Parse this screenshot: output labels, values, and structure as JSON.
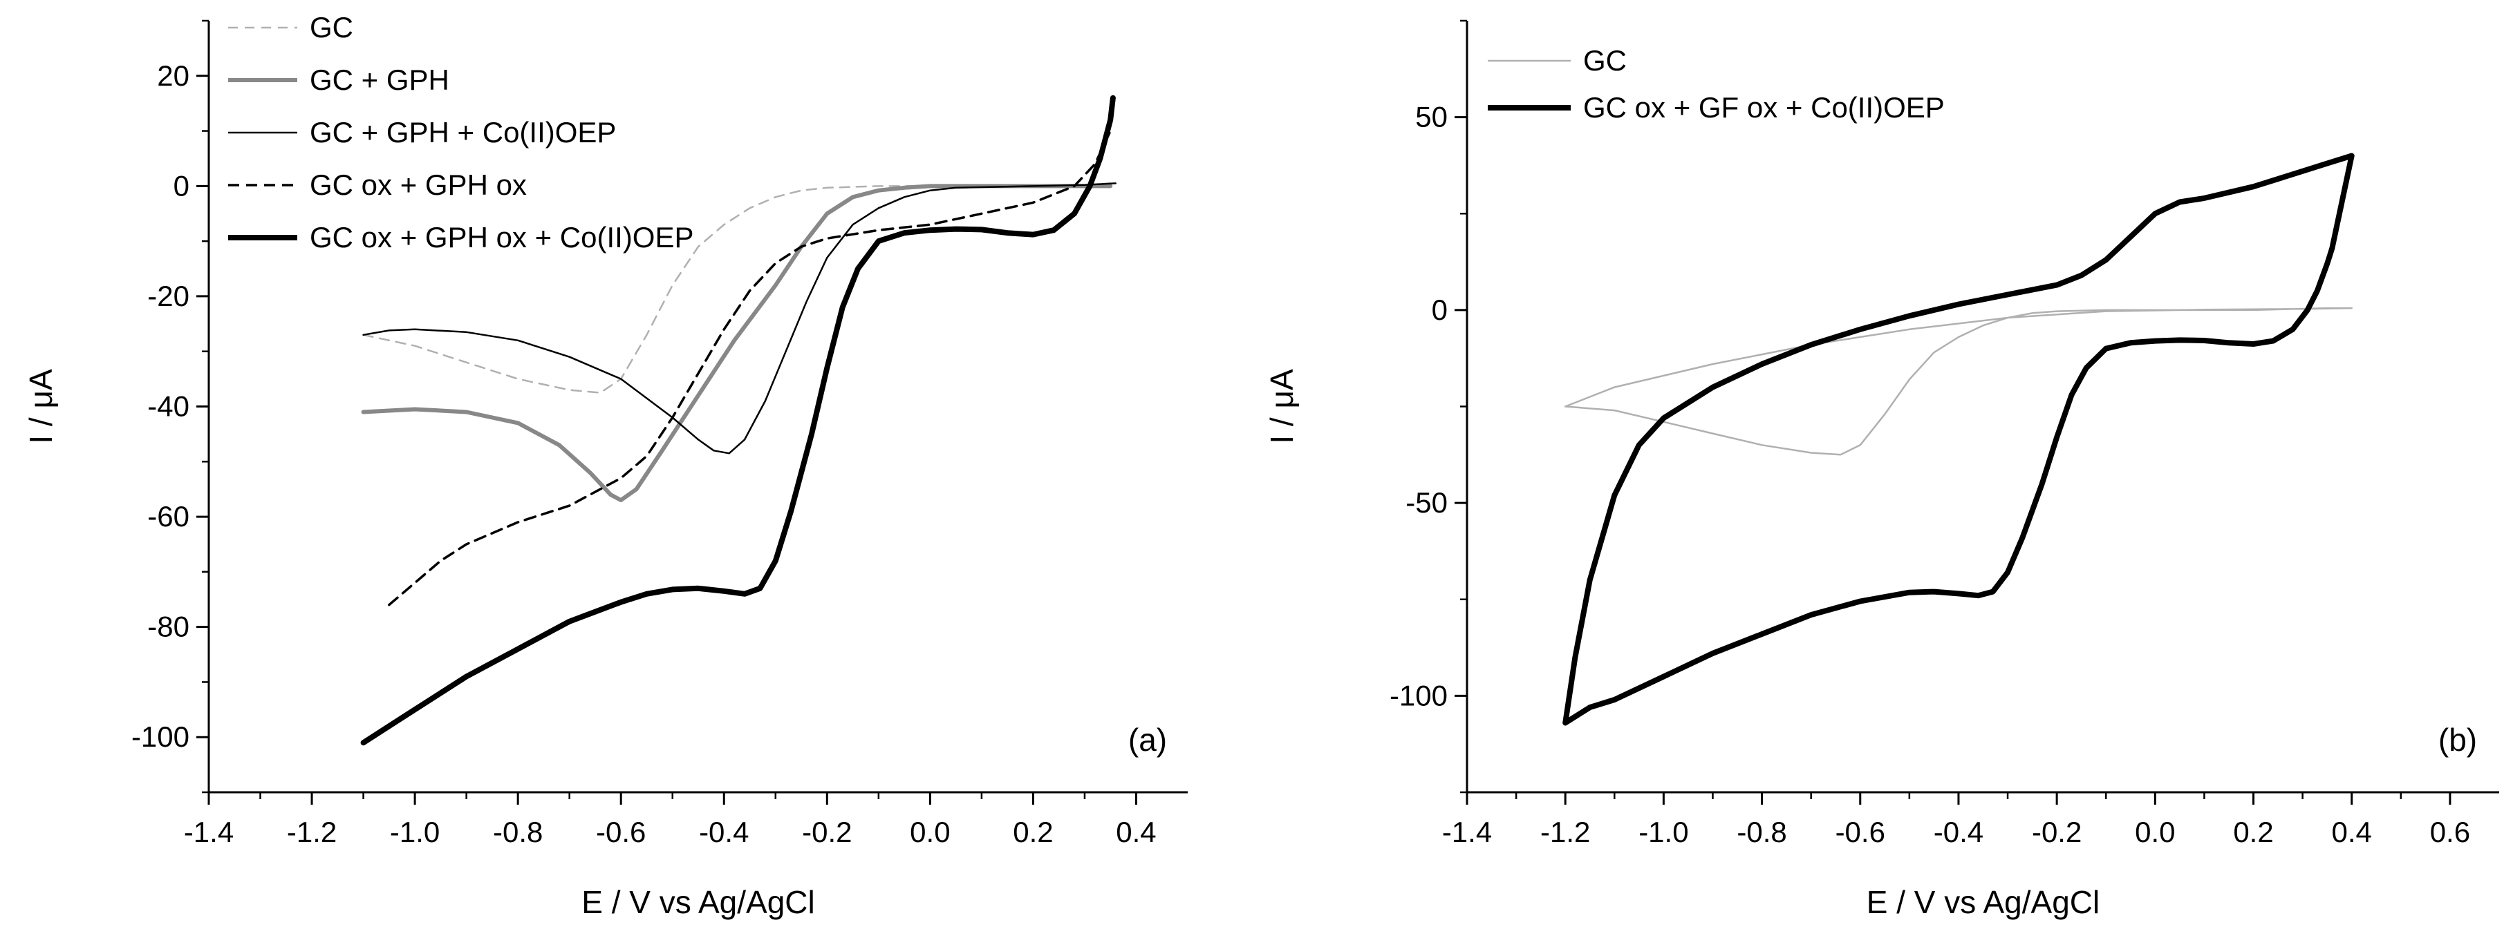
{
  "chart_data": [
    {
      "id": "a",
      "type": "line",
      "panel_label": "(a)",
      "xlabel": "E / V vs Ag/AgCl",
      "ylabel": "I / μA",
      "xlim": [
        -1.4,
        0.5
      ],
      "ylim": [
        -110,
        30
      ],
      "xticks": [
        -1.4,
        -1.2,
        -1.0,
        -0.8,
        -0.6,
        -0.4,
        -0.2,
        0.0,
        0.2,
        0.4
      ],
      "xtick_labels": [
        "-1.4",
        "-1.2",
        "-1.0",
        "-0.8",
        "-0.6",
        "-0.4",
        "-0.2",
        "0.0",
        "0.2",
        "0.4"
      ],
      "yticks": [
        -100,
        -80,
        -60,
        -40,
        -20,
        0,
        20
      ],
      "ytick_labels": [
        "-100",
        "-80",
        "-60",
        "-40",
        "-20",
        "0",
        "20"
      ],
      "legend_position": "top-left",
      "series": [
        {
          "name": "GC",
          "color": "#b0b0b0",
          "style": "dashed-thin",
          "points": [
            [
              -1.1,
              -27
            ],
            [
              -1.0,
              -29
            ],
            [
              -0.9,
              -32
            ],
            [
              -0.8,
              -35
            ],
            [
              -0.7,
              -37
            ],
            [
              -0.64,
              -37.5
            ],
            [
              -0.6,
              -35
            ],
            [
              -0.55,
              -27
            ],
            [
              -0.5,
              -18
            ],
            [
              -0.45,
              -11
            ],
            [
              -0.4,
              -7
            ],
            [
              -0.35,
              -4
            ],
            [
              -0.3,
              -2
            ],
            [
              -0.25,
              -0.8
            ],
            [
              -0.2,
              -0.3
            ],
            [
              -0.1,
              0
            ],
            [
              0.0,
              0
            ],
            [
              0.1,
              0
            ],
            [
              0.2,
              0
            ],
            [
              0.3,
              0.2
            ],
            [
              0.35,
              0.5
            ]
          ]
        },
        {
          "name": "GC + GPH",
          "color": "#888888",
          "style": "solid-medium",
          "points": [
            [
              -1.1,
              -41
            ],
            [
              -1.0,
              -40.5
            ],
            [
              -0.9,
              -41
            ],
            [
              -0.8,
              -43
            ],
            [
              -0.72,
              -47
            ],
            [
              -0.66,
              -52
            ],
            [
              -0.62,
              -56
            ],
            [
              -0.6,
              -57
            ],
            [
              -0.57,
              -55
            ],
            [
              -0.52,
              -48
            ],
            [
              -0.45,
              -38
            ],
            [
              -0.38,
              -28
            ],
            [
              -0.3,
              -18
            ],
            [
              -0.25,
              -11
            ],
            [
              -0.2,
              -5
            ],
            [
              -0.15,
              -2
            ],
            [
              -0.1,
              -0.8
            ],
            [
              -0.05,
              -0.3
            ],
            [
              0.0,
              0
            ],
            [
              0.2,
              0
            ],
            [
              0.35,
              0
            ]
          ]
        },
        {
          "name": "GC + GPH + Co(II)OEP",
          "color": "#000000",
          "style": "solid-thin",
          "points": [
            [
              -1.1,
              -27
            ],
            [
              -1.05,
              -26.2
            ],
            [
              -1.0,
              -26
            ],
            [
              -0.9,
              -26.5
            ],
            [
              -0.8,
              -28
            ],
            [
              -0.7,
              -31
            ],
            [
              -0.6,
              -35
            ],
            [
              -0.5,
              -42
            ],
            [
              -0.45,
              -46
            ],
            [
              -0.42,
              -48
            ],
            [
              -0.39,
              -48.5
            ],
            [
              -0.36,
              -46
            ],
            [
              -0.32,
              -39
            ],
            [
              -0.28,
              -30
            ],
            [
              -0.24,
              -21
            ],
            [
              -0.2,
              -13
            ],
            [
              -0.15,
              -7
            ],
            [
              -0.1,
              -4
            ],
            [
              -0.05,
              -2
            ],
            [
              0.0,
              -0.8
            ],
            [
              0.05,
              -0.3
            ],
            [
              0.2,
              0
            ],
            [
              0.3,
              0.2
            ],
            [
              0.36,
              0.5
            ]
          ]
        },
        {
          "name": "GC ox + GPH ox",
          "color": "#000000",
          "style": "dashed-medium",
          "points": [
            [
              -1.05,
              -76
            ],
            [
              -1.0,
              -72
            ],
            [
              -0.95,
              -68
            ],
            [
              -0.9,
              -65
            ],
            [
              -0.8,
              -61
            ],
            [
              -0.7,
              -58
            ],
            [
              -0.6,
              -53
            ],
            [
              -0.55,
              -49
            ],
            [
              -0.5,
              -42
            ],
            [
              -0.45,
              -34
            ],
            [
              -0.4,
              -26
            ],
            [
              -0.35,
              -19
            ],
            [
              -0.3,
              -14
            ],
            [
              -0.25,
              -11
            ],
            [
              -0.2,
              -9.5
            ],
            [
              -0.1,
              -8
            ],
            [
              0.0,
              -7
            ],
            [
              0.1,
              -5
            ],
            [
              0.2,
              -3
            ],
            [
              0.28,
              0
            ],
            [
              0.32,
              4
            ],
            [
              0.35,
              10
            ]
          ]
        },
        {
          "name": "GC ox + GPH ox + Co(II)OEP",
          "color": "#000000",
          "style": "solid-thick",
          "points": [
            [
              -1.1,
              -101
            ],
            [
              -1.05,
              -98
            ],
            [
              -1.0,
              -95
            ],
            [
              -0.9,
              -89
            ],
            [
              -0.8,
              -84
            ],
            [
              -0.7,
              -79
            ],
            [
              -0.6,
              -75.5
            ],
            [
              -0.55,
              -74
            ],
            [
              -0.5,
              -73.2
            ],
            [
              -0.45,
              -73
            ],
            [
              -0.4,
              -73.5
            ],
            [
              -0.36,
              -74
            ],
            [
              -0.33,
              -73
            ],
            [
              -0.3,
              -68
            ],
            [
              -0.27,
              -59
            ],
            [
              -0.23,
              -45
            ],
            [
              -0.2,
              -33
            ],
            [
              -0.17,
              -22
            ],
            [
              -0.14,
              -15
            ],
            [
              -0.1,
              -10
            ],
            [
              -0.05,
              -8.5
            ],
            [
              0.0,
              -8
            ],
            [
              0.05,
              -7.8
            ],
            [
              0.1,
              -7.9
            ],
            [
              0.15,
              -8.5
            ],
            [
              0.2,
              -8.8
            ],
            [
              0.24,
              -8
            ],
            [
              0.28,
              -5
            ],
            [
              0.31,
              0
            ],
            [
              0.33,
              5
            ],
            [
              0.35,
              12
            ],
            [
              0.355,
              16
            ]
          ]
        }
      ]
    },
    {
      "id": "b",
      "type": "line",
      "panel_label": "(b)",
      "xlabel": "E / V vs Ag/AgCl",
      "ylabel": "I / μA",
      "xlim": [
        -1.4,
        0.7
      ],
      "ylim": [
        -125,
        75
      ],
      "xticks": [
        -1.4,
        -1.2,
        -1.0,
        -0.8,
        -0.6,
        -0.4,
        -0.2,
        0.0,
        0.2,
        0.4,
        0.6
      ],
      "xtick_labels": [
        "-1.4",
        "-1.2",
        "-1.0",
        "-0.8",
        "-0.6",
        "-0.4",
        "-0.2",
        "0.0",
        "0.2",
        "0.4",
        "0.6"
      ],
      "yticks": [
        -100,
        -50,
        0,
        50
      ],
      "ytick_labels": [
        "-100",
        "-50",
        "0",
        "50"
      ],
      "legend_position": "top-left",
      "series": [
        {
          "name": "GC",
          "color": "#b0b0b0",
          "style": "solid-thin",
          "points": [
            [
              -1.2,
              -25
            ],
            [
              -1.1,
              -26
            ],
            [
              -1.0,
              -29
            ],
            [
              -0.9,
              -32
            ],
            [
              -0.8,
              -35
            ],
            [
              -0.7,
              -37
            ],
            [
              -0.64,
              -37.5
            ],
            [
              -0.6,
              -35
            ],
            [
              -0.55,
              -27
            ],
            [
              -0.5,
              -18
            ],
            [
              -0.45,
              -11
            ],
            [
              -0.4,
              -7
            ],
            [
              -0.35,
              -4
            ],
            [
              -0.3,
              -2
            ],
            [
              -0.25,
              -0.8
            ],
            [
              -0.2,
              -0.3
            ],
            [
              -0.1,
              0
            ],
            [
              0.0,
              0
            ],
            [
              0.2,
              0
            ],
            [
              0.35,
              0.5
            ],
            [
              0.4,
              0.5
            ],
            [
              0.3,
              0.3
            ],
            [
              0.1,
              0.1
            ],
            [
              -0.1,
              -0.3
            ],
            [
              -0.3,
              -2
            ],
            [
              -0.5,
              -5
            ],
            [
              -0.7,
              -9
            ],
            [
              -0.9,
              -14
            ],
            [
              -1.1,
              -20
            ],
            [
              -1.2,
              -25
            ]
          ]
        },
        {
          "name": "GC ox + GF ox + Co(II)OEP",
          "color": "#000000",
          "style": "solid-thick",
          "points": [
            [
              -1.2,
              -107
            ],
            [
              -1.15,
              -103
            ],
            [
              -1.1,
              -101
            ],
            [
              -1.0,
              -95
            ],
            [
              -0.9,
              -89
            ],
            [
              -0.8,
              -84
            ],
            [
              -0.7,
              -79
            ],
            [
              -0.6,
              -75.5
            ],
            [
              -0.5,
              -73.2
            ],
            [
              -0.45,
              -73
            ],
            [
              -0.4,
              -73.5
            ],
            [
              -0.36,
              -74
            ],
            [
              -0.33,
              -73
            ],
            [
              -0.3,
              -68
            ],
            [
              -0.27,
              -59
            ],
            [
              -0.23,
              -45
            ],
            [
              -0.2,
              -33
            ],
            [
              -0.17,
              -22
            ],
            [
              -0.14,
              -15
            ],
            [
              -0.1,
              -10
            ],
            [
              -0.05,
              -8.5
            ],
            [
              0.0,
              -8
            ],
            [
              0.05,
              -7.8
            ],
            [
              0.1,
              -7.9
            ],
            [
              0.15,
              -8.5
            ],
            [
              0.2,
              -8.8
            ],
            [
              0.24,
              -8
            ],
            [
              0.28,
              -5
            ],
            [
              0.31,
              0
            ],
            [
              0.33,
              5
            ],
            [
              0.35,
              12
            ],
            [
              0.36,
              16
            ],
            [
              0.4,
              40
            ],
            [
              0.35,
              38
            ],
            [
              0.3,
              36
            ],
            [
              0.2,
              32
            ],
            [
              0.1,
              29
            ],
            [
              0.05,
              28
            ],
            [
              0.0,
              25
            ],
            [
              -0.05,
              19
            ],
            [
              -0.1,
              13
            ],
            [
              -0.15,
              9
            ],
            [
              -0.2,
              6.5
            ],
            [
              -0.3,
              4
            ],
            [
              -0.4,
              1.5
            ],
            [
              -0.5,
              -1.5
            ],
            [
              -0.6,
              -5
            ],
            [
              -0.7,
              -9
            ],
            [
              -0.8,
              -14
            ],
            [
              -0.9,
              -20
            ],
            [
              -1.0,
              -28
            ],
            [
              -1.05,
              -35
            ],
            [
              -1.1,
              -48
            ],
            [
              -1.15,
              -70
            ],
            [
              -1.18,
              -90
            ],
            [
              -1.2,
              -107
            ]
          ]
        }
      ]
    }
  ]
}
